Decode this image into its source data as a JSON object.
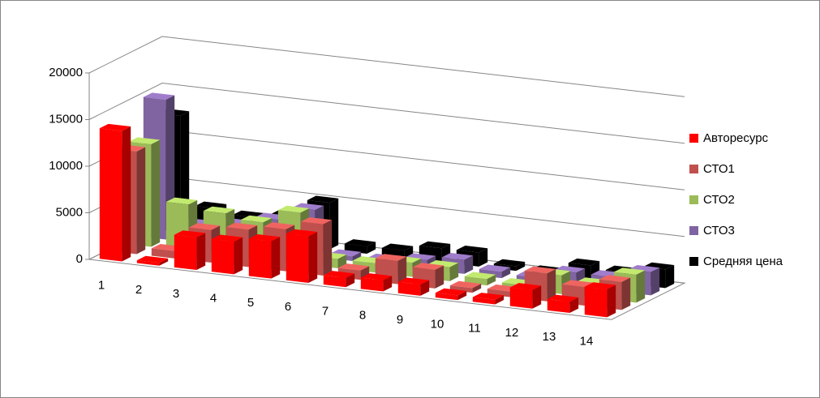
{
  "chart_data": {
    "type": "bar3d",
    "categories": [
      "1",
      "2",
      "3",
      "4",
      "5",
      "6",
      "7",
      "8",
      "9",
      "10",
      "11",
      "12",
      "13",
      "14"
    ],
    "series": [
      {
        "name": "Авторесурс",
        "color": "#ff0000",
        "values": [
          14000,
          300,
          3500,
          3500,
          4000,
          5000,
          1000,
          1200,
          1200,
          500,
          500,
          2000,
          1200,
          3000
        ]
      },
      {
        "name": "СТО1",
        "color": "#c0504d",
        "values": [
          11000,
          800,
          3500,
          4000,
          4500,
          5500,
          1000,
          2500,
          2000,
          500,
          600,
          3000,
          2000,
          3000
        ]
      },
      {
        "name": "СТО2",
        "color": "#9bbb59",
        "values": [
          11000,
          5000,
          4500,
          4000,
          5500,
          1000,
          1000,
          1500,
          1500,
          700,
          500,
          2000,
          1500,
          3000
        ]
      },
      {
        "name": "СТО3",
        "color": "#8064a2",
        "values": [
          15000,
          2000,
          2500,
          3500,
          5000,
          500,
          500,
          1000,
          1500,
          700,
          500,
          1500,
          1500,
          2500
        ]
      },
      {
        "name": "Средняя цена",
        "color": "#000000",
        "values": [
          12500,
          3000,
          2500,
          3000,
          5000,
          800,
          800,
          1500,
          1500,
          500,
          300,
          1500,
          1200,
          2000
        ]
      }
    ],
    "ylim": [
      0,
      20000
    ],
    "yticks": [
      0,
      5000,
      10000,
      15000,
      20000
    ],
    "grid": true,
    "legend": "right"
  }
}
